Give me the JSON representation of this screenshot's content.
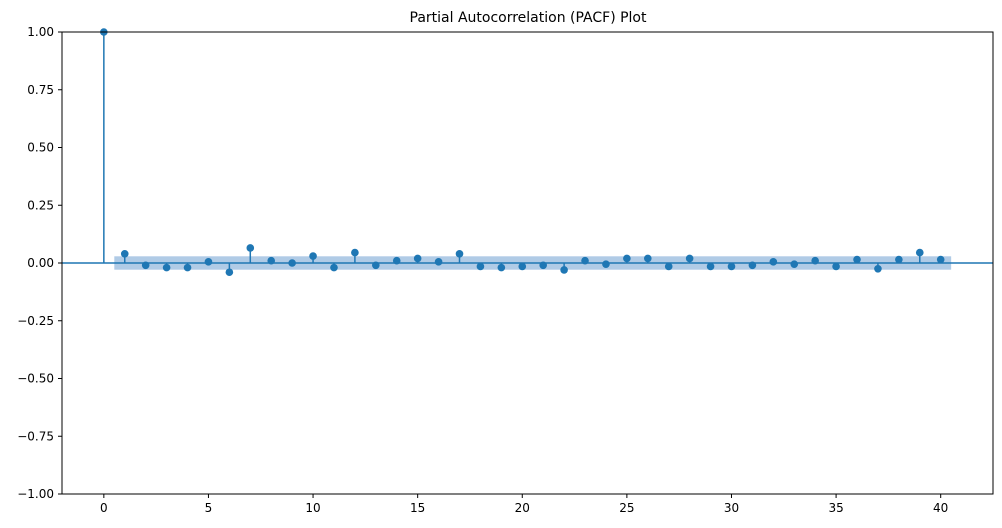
{
  "chart_data": {
    "type": "scatter",
    "style": "stem",
    "title": "Partial Autocorrelation (PACF) Plot",
    "xlabel": "",
    "ylabel": "",
    "xlim": [
      -2,
      42.5
    ],
    "ylim": [
      -1.0,
      1.0
    ],
    "x_ticks": [
      0,
      5,
      10,
      15,
      20,
      25,
      30,
      35,
      40
    ],
    "x_tick_labels": [
      "0",
      "5",
      "10",
      "15",
      "20",
      "25",
      "30",
      "35",
      "40"
    ],
    "y_ticks": [
      -1.0,
      -0.75,
      -0.5,
      -0.25,
      0.0,
      0.25,
      0.5,
      0.75,
      1.0
    ],
    "y_tick_labels": [
      "−1.00",
      "−0.75",
      "−0.50",
      "−0.25",
      "0.00",
      "0.25",
      "0.50",
      "0.75",
      "1.00"
    ],
    "grid": false,
    "legend": "none",
    "series": [
      {
        "x": [
          0,
          1,
          2,
          3,
          4,
          5,
          6,
          7,
          8,
          9,
          10,
          11,
          12,
          13,
          14,
          15,
          16,
          17,
          18,
          19,
          20,
          21,
          22,
          23,
          24,
          25,
          26,
          27,
          28,
          29,
          30,
          31,
          32,
          33,
          34,
          35,
          36,
          37,
          38,
          39,
          40
        ],
        "values": [
          1.0,
          0.04,
          -0.01,
          -0.02,
          -0.02,
          0.005,
          -0.04,
          0.065,
          0.01,
          0.0,
          0.03,
          -0.02,
          0.045,
          -0.01,
          0.01,
          0.02,
          0.005,
          0.04,
          -0.015,
          -0.02,
          -0.015,
          -0.01,
          -0.03,
          0.01,
          -0.005,
          0.02,
          0.02,
          -0.015,
          0.02,
          -0.015,
          -0.015,
          -0.01,
          0.005,
          -0.005,
          0.01,
          -0.015,
          0.015,
          -0.025,
          0.015,
          0.045,
          0.015
        ]
      }
    ],
    "confidence_band": {
      "x_range": [
        0.5,
        40.5
      ],
      "lower": -0.029,
      "upper": 0.029
    },
    "zero_line": 0.0,
    "colors": {
      "marker": "#1f77b4",
      "band": "#b0cbe6"
    }
  }
}
